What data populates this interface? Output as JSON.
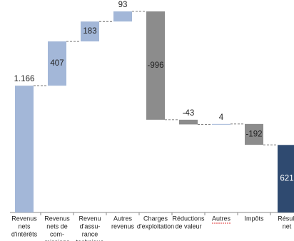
{
  "chart_data": {
    "type": "waterfall",
    "categories": [
      [
        "Revenus",
        "nets",
        "d'intérêts"
      ],
      [
        "Revenus",
        "nets de",
        "com-",
        "missions"
      ],
      [
        "Revenu",
        "d'assu-",
        "rance",
        "technique"
      ],
      [
        "Autres",
        "revenus"
      ],
      [
        "Charges",
        "d'exploitation"
      ],
      [
        "Réductions",
        "de valeur"
      ],
      [
        "Autres"
      ],
      [
        "Impôts"
      ],
      [
        "Résult",
        "net"
      ]
    ],
    "values": [
      1166,
      407,
      183,
      93,
      -996,
      -43,
      4,
      -192,
      621
    ],
    "value_labels": [
      "1.166",
      "407",
      "183",
      "93",
      "-996",
      "-43",
      "4",
      "-192",
      "621"
    ],
    "colors": [
      "#a3b7d8",
      "#a3b7d8",
      "#a3b7d8",
      "#a3b7d8",
      "#8c8c8c",
      "#8c8c8c",
      "#a3b7d8",
      "#8c8c8c",
      "#2f4a70"
    ]
  }
}
